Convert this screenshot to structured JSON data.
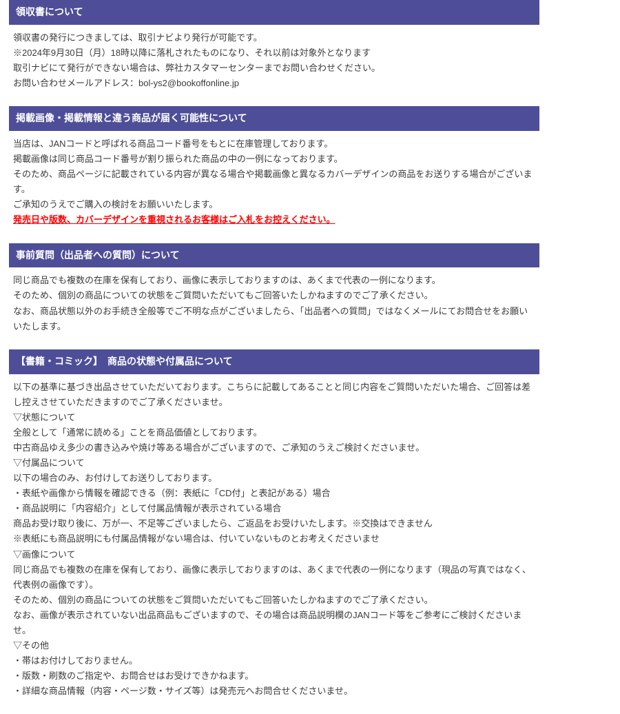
{
  "colors": {
    "header_bg": "#4e4e98",
    "header_fg": "#ffffff",
    "body_bg": "#ffffff",
    "text": "#3a3a3a",
    "emphasis": "#ff0000"
  },
  "sections": {
    "receipt": {
      "title": "領収書について",
      "lines": [
        "領収書の発行につきましては、取引ナビより発行が可能です。",
        "※2024年9月30日（月）18時以降に落札されたものになり、それ以前は対象外となります",
        "取引ナビにて発行ができない場合は、弊社カスタマーセンターまでお問い合わせください。",
        "お問い合わせメールアドレス：bol-ys2@bookoffonline.jp"
      ]
    },
    "difference": {
      "title": "掲載画像・掲載情報と違う商品が届く可能性について",
      "lines": [
        "当店は、JANコードと呼ばれる商品コード番号をもとに在庫管理しております。",
        "掲載画像は同じ商品コード番号が割り振られた商品の中の一例になっております。",
        "そのため、商品ページに記載されている内容が異なる場合や掲載画像と異なるカバーデザインの商品をお送りする場合がございます。",
        "ご承知のうえでご購入の検討をお願いいたします。"
      ],
      "emphasis": "発売日や版数、カバーデザインを重視されるお客様はご入札をお控えください。"
    },
    "questions": {
      "title": "事前質問（出品者への質問）について",
      "lines": [
        "同じ商品でも複数の在庫を保有しており、画像に表示しておりますのは、あくまで代表の一例になります。",
        "そのため、個別の商品についての状態をご質問いただいてもご回答いたしかねますのでご了承ください。",
        "なお、商品状態以外のお手続き全般等でご不明な点がございましたら、「出品者への質問」ではなくメールにてお問合せをお願いいたします。"
      ]
    },
    "condition": {
      "title": "【書籍・コミック】　商品の状態や付属品について",
      "intro": "以下の基準に基づき出品させていただいております。こちらに記載してあることと同じ内容をご質問いただいた場合、ご回答は差し控えさせていただきますのでご了承くださいませ。",
      "subhead_condition": "▽状態について",
      "condition_lines": [
        "全般として「通常に読める」ことを商品価値としております。",
        "中古商品ゆえ多少の書き込みや焼け等ある場合がございますので、ご承知のうえご検討くださいませ。"
      ],
      "subhead_accessories": "▽付属品について",
      "accessories_lines": [
        "以下の場合のみ、お付けしてお送りしております。",
        "・表紙や画像から情報を確認できる（例：表紙に「CD付」と表記がある）場合",
        "・商品説明に「内容紹介」として付属品情報が表示されている場合",
        "商品お受け取り後に、万が一、不足等ございましたら、ご返品をお受けいたします。※交換はできません",
        "※表紙にも商品説明にも付属品情報がない場合は、付いていないものとお考えくださいませ"
      ],
      "subhead_images": "▽画像について",
      "images_lines": [
        "同じ商品でも複数の在庫を保有しており、画像に表示しておりますのは、あくまで代表の一例になります（現品の写真ではなく、代表例の画像です）。",
        "そのため、個別の商品についての状態をご質問いただいてもご回答いたしかねますのでご了承ください。",
        "なお、画像が表示されていない出品商品もございますので、その場合は商品説明欄のJANコード等をご参考にご検討くださいませ。"
      ],
      "subhead_other": "▽その他",
      "other_lines": [
        "・帯はお付けしておりません。",
        "・版数・刷数のご指定や、お問合せはお受けできかねます。",
        "・詳細な商品情報（内容・ページ数・サイズ等）は発売元へお問合せくださいませ。"
      ]
    }
  }
}
